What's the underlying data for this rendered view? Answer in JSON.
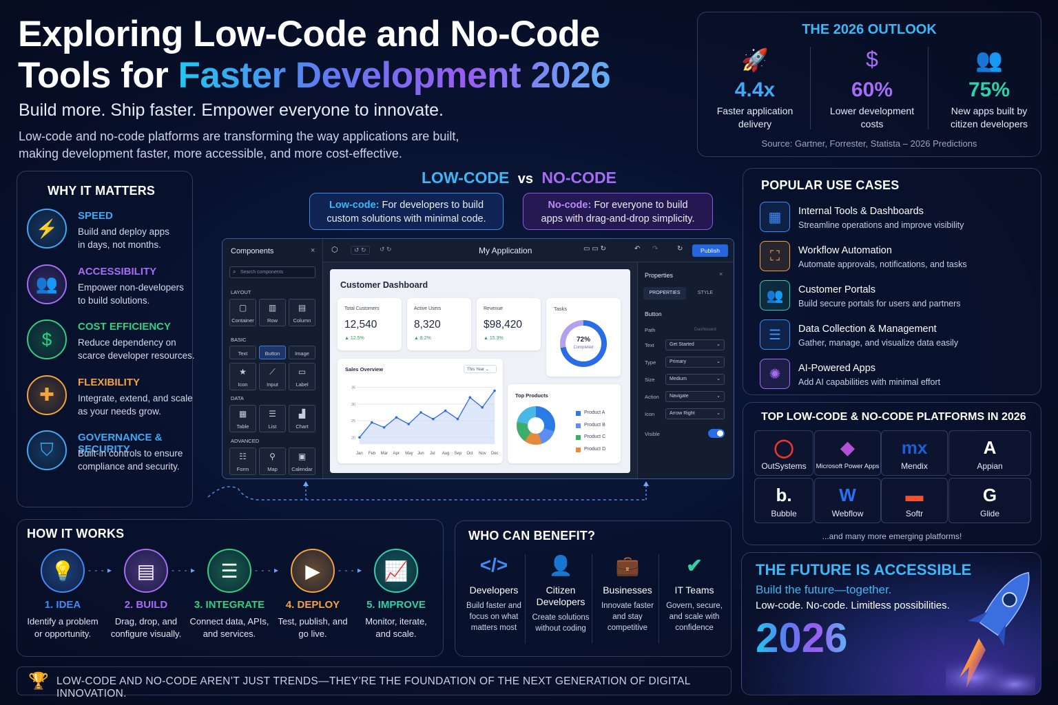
{
  "header": {
    "title_line1": "Exploring Low-Code and No-Code",
    "title_line2_plain": "Tools for ",
    "title_line2_accent": "Faster Development 2026",
    "subtitle": "Build more.  Ship faster.  Empower everyone to innovate.",
    "description_line1": "Low-code and no-code platforms are transforming the way applications are built,",
    "description_line2": "making development faster, more accessible, and more cost-effective."
  },
  "outlook": {
    "title": "THE 2026 OUTLOOK",
    "stats": [
      {
        "icon": "rocket-icon",
        "value": "4.4x",
        "label_1": "Faster application",
        "label_2": "delivery",
        "color": "#3fa9f5"
      },
      {
        "icon": "dollar-icon",
        "value": "60%",
        "label_1": "Lower development",
        "label_2": "costs",
        "color": "#a66cf5"
      },
      {
        "icon": "users-icon",
        "value": "75%",
        "label_1": "New apps built by",
        "label_2": "citizen developers",
        "color": "#2ed1a8"
      }
    ],
    "source": "Source: Gartner, Forrester, Statista – 2026 Predictions"
  },
  "why": {
    "title": "WHY IT MATTERS",
    "items": [
      {
        "icon": "lightning-icon",
        "title": "SPEED",
        "desc_1": "Build and deploy apps",
        "desc_2": "in days, not months.",
        "color": "#3fa9f5"
      },
      {
        "icon": "people-icon",
        "title": "ACCESSIBILITY",
        "desc_1": "Empower non-developers",
        "desc_2": "to build solutions.",
        "color": "#a66cf5"
      },
      {
        "icon": "dollar-icon",
        "title": "COST EFFICIENCY",
        "desc_1": "Reduce dependency on",
        "desc_2": "scarce developer resources.",
        "color": "#2ed17f"
      },
      {
        "icon": "puzzle-icon",
        "title": "FLEXIBILITY",
        "desc_1": "Integrate, extend, and scale",
        "desc_2": "as your needs grow.",
        "color": "#f5a33f"
      },
      {
        "icon": "shield-icon",
        "title": "GOVERNANCE & SECURITY",
        "desc_1": "Built-in controls to ensure",
        "desc_2": "compliance and security.",
        "color": "#3fa9f5"
      }
    ]
  },
  "versus": {
    "low": "LOW-CODE",
    "vs": "vs",
    "no": "NO-CODE",
    "low_box_label": "Low-code:",
    "low_box_text_1": " For developers to build",
    "low_box_text_2": "custom solutions with minimal code.",
    "no_box_label": "No-code:",
    "no_box_text_1": " For everyone to build",
    "no_box_text_2": "apps with drag-and-drop simplicity."
  },
  "builder": {
    "components_title": "Components",
    "search_placeholder": "Search components",
    "sections": {
      "layout": "LAYOUT",
      "basic": "BASIC",
      "data": "DATA",
      "advanced": "ADVANCED"
    },
    "layout_items": [
      "Container",
      "Row",
      "Column"
    ],
    "basic_items": [
      "Text",
      "Button",
      "Image",
      "Icon",
      "Input",
      "Label"
    ],
    "data_items": [
      "Table",
      "List",
      "Chart"
    ],
    "advanced_items": [
      "Form",
      "Map",
      "Calendar"
    ],
    "app_title": "My Application",
    "publish": "Publish",
    "dashboard": {
      "title": "Customer Dashboard",
      "kpis": [
        {
          "label": "Total Customers",
          "value": "12,540",
          "delta": "▲ 12.5%"
        },
        {
          "label": "Active Users",
          "value": "8,320",
          "delta": "▲ 8.2%"
        },
        {
          "label": "Revenue",
          "value": "$98,420",
          "delta": "▲ 15.3%"
        }
      ],
      "tasks_label": "Tasks",
      "tasks_value": "72%",
      "tasks_sub": "Completed",
      "sales_title": "Sales Overview",
      "sales_filter": "This Year",
      "top_products_title": "Top Products",
      "products": [
        "Product A",
        "Product B",
        "Product C",
        "Product D"
      ]
    },
    "properties": {
      "title": "Properties",
      "tab_properties": "PROPERTIES",
      "tab_style": "STYLE",
      "component": "Button",
      "path_label": "Path",
      "path_value": "Dashboard",
      "rows": [
        {
          "label": "Text",
          "value": "Get Started"
        },
        {
          "label": "Type",
          "value": "Primary"
        },
        {
          "label": "Size",
          "value": "Medium"
        },
        {
          "label": "Action",
          "value": "Navigate"
        },
        {
          "label": "Icon",
          "value": "Arrow Right"
        }
      ],
      "visible_label": "Visible",
      "visible_on": true
    }
  },
  "chart_data": {
    "type": "line",
    "title": "Sales Overview",
    "categories": [
      "Jan",
      "Feb",
      "Mar",
      "Apr",
      "May",
      "Jun",
      "Jul",
      "Aug",
      "Sep",
      "Oct",
      "Nov",
      "Dec"
    ],
    "values": [
      20,
      24.5,
      23,
      26,
      24,
      27.5,
      25.5,
      28,
      25.5,
      32,
      29,
      34
    ],
    "y_ticks": [
      20,
      25,
      30,
      35
    ],
    "ylim": [
      18,
      37
    ]
  },
  "use_cases": {
    "title": "POPULAR USE CASES",
    "items": [
      {
        "icon": "dashboard-icon",
        "title": "Internal Tools & Dashboards",
        "desc": "Streamline operations and improve visibility",
        "color": "#3f8cf5"
      },
      {
        "icon": "workflow-icon",
        "title": "Workflow Automation",
        "desc": "Automate approvals, notifications, and tasks",
        "color": "#f5a33f"
      },
      {
        "icon": "users-icon",
        "title": "Customer Portals",
        "desc": "Build secure portals for users and partners",
        "color": "#2ed1a8"
      },
      {
        "icon": "database-icon",
        "title": "Data Collection & Management",
        "desc": "Gather, manage, and visualize data easily",
        "color": "#3f8cf5"
      },
      {
        "icon": "brain-icon",
        "title": "AI-Powered Apps",
        "desc": "Add AI capabilities with minimal effort",
        "color": "#a66cf5"
      }
    ]
  },
  "platforms": {
    "title": "TOP LOW-CODE & NO-CODE PLATFORMS IN 2026",
    "items": [
      {
        "name": "OutSystems",
        "logo": "◯",
        "color": "#e8362c"
      },
      {
        "name": "Microsoft Power Apps",
        "logo": "◆",
        "color": "#b350d6"
      },
      {
        "name": "Mendix",
        "logo": "mx",
        "color": "#1e5fd6"
      },
      {
        "name": "Appian",
        "logo": "A",
        "color": "#ffffff"
      },
      {
        "name": "Bubble",
        "logo": "b.",
        "color": "#ffffff"
      },
      {
        "name": "Webflow",
        "logo": "W",
        "color": "#2d6ff2"
      },
      {
        "name": "Softr",
        "logo": "▬",
        "color": "#f0532e"
      },
      {
        "name": "Glide",
        "logo": "G",
        "color": "#ffffff"
      }
    ],
    "footer": "...and many more emerging platforms!"
  },
  "how": {
    "title": "HOW IT WORKS",
    "steps": [
      {
        "icon": "lightbulb-icon",
        "title": "1. IDEA",
        "desc_1": "Identify a problem",
        "desc_2": "or opportunity.",
        "color": "#3f8cf5"
      },
      {
        "icon": "layout-icon",
        "title": "2. BUILD",
        "desc_1": "Drag, drop, and",
        "desc_2": "configure visually.",
        "color": "#a66cf5"
      },
      {
        "icon": "database-icon",
        "title": "3. INTEGRATE",
        "desc_1": "Connect data, APIs,",
        "desc_2": "and services.",
        "color": "#2ed17f"
      },
      {
        "icon": "play-icon",
        "title": "4. DEPLOY",
        "desc_1": "Test, publish, and",
        "desc_2": "go live.",
        "color": "#f5a33f"
      },
      {
        "icon": "chart-up-icon",
        "title": "5. IMPROVE",
        "desc_1": "Monitor, iterate,",
        "desc_2": "and scale.",
        "color": "#2ed1a8"
      }
    ]
  },
  "benefit": {
    "title": "WHO CAN BENEFIT?",
    "items": [
      {
        "icon": "code-icon",
        "title_1": "Developers",
        "title_2": "",
        "d1": "Build faster and",
        "d2": "focus on what",
        "d3": "matters most",
        "color": "#3f8cf5"
      },
      {
        "icon": "person-icon",
        "title_1": "Citizen",
        "title_2": "Developers",
        "d1": "Create solutions",
        "d2": "without coding",
        "d3": "",
        "color": "#3f8cf5"
      },
      {
        "icon": "briefcase-icon",
        "title_1": "Businesses",
        "title_2": "",
        "d1": "Innovate faster",
        "d2": "and stay",
        "d3": "competitive",
        "color": "#3fa9f5"
      },
      {
        "icon": "shield-check-icon",
        "title_1": "IT Teams",
        "title_2": "",
        "d1": "Govern, secure,",
        "d2": "and scale with",
        "d3": "confidence",
        "color": "#2ed1a8"
      }
    ]
  },
  "future": {
    "title": "THE FUTURE IS ACCESSIBLE",
    "line1": "Build the future—together.",
    "line2": "Low-code. No-code. Limitless possibilities.",
    "year": "2026"
  },
  "banner": {
    "icon": "trophy-icon",
    "text": "LOW-CODE AND NO-CODE AREN’T JUST TRENDS—THEY’RE THE FOUNDATION OF THE NEXT GENERATION OF DIGITAL INNOVATION."
  }
}
